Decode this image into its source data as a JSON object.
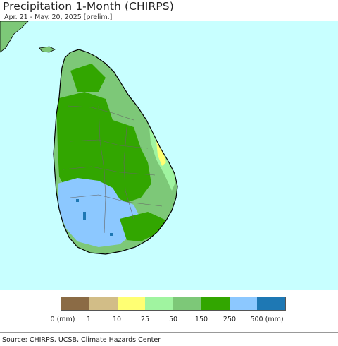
{
  "header": {
    "title": "Precipitation 1-Month (CHIRPS)",
    "subtitle": "Apr. 21 - May. 20, 2025 [prelim.]"
  },
  "map": {
    "ocean_color": "#c8ffff",
    "land_outline_color": "#000000"
  },
  "legend": {
    "colors": [
      "#8b6b45",
      "#d2bd87",
      "#ffff73",
      "#a0f4a0",
      "#7dc878",
      "#32a600",
      "#8cc8ff",
      "#1e78b4"
    ],
    "labels": [
      "0 (mm)",
      "1",
      "10",
      "25",
      "50",
      "150",
      "250",
      "500 (mm)"
    ]
  },
  "footer": {
    "source": "Source: CHIRPS, UCSB, Climate Hazards Center"
  }
}
